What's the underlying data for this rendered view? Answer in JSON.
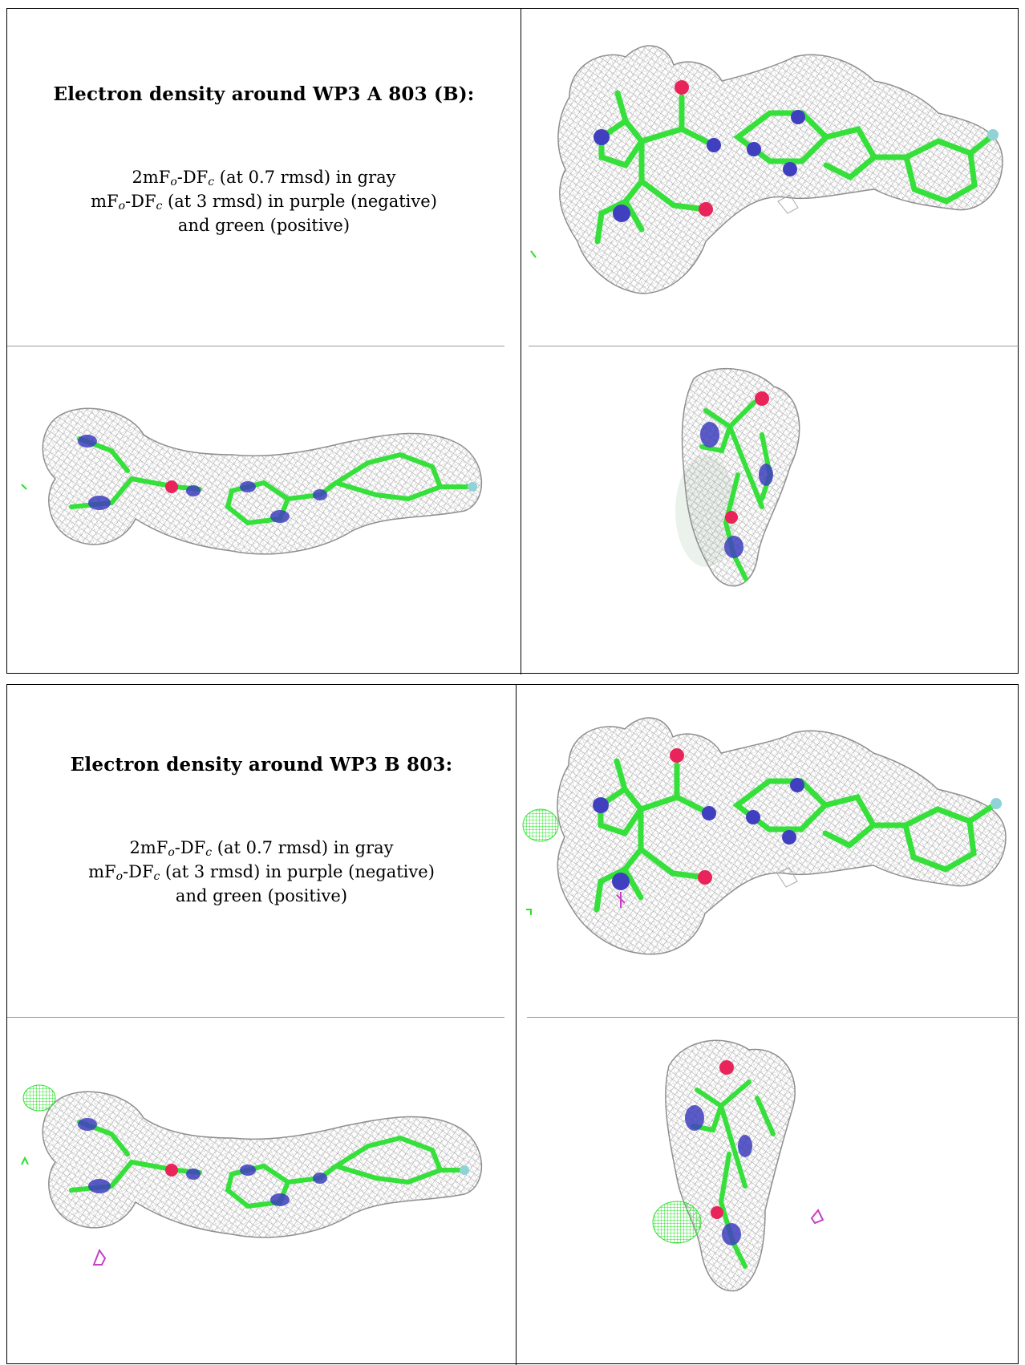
{
  "panels": [
    {
      "title": "Electron density around WP3 A 803 (B):",
      "line1": [
        "2mF",
        "o",
        "-DF",
        "c",
        " (at 0.7 rmsd) in gray"
      ],
      "line2": [
        "mF",
        "o",
        "-DF",
        "c",
        " (at 3 rmsd) in purple (negative)"
      ],
      "line3": "and green (positive)"
    },
    {
      "title": "Electron density around WP3 B 803:",
      "line1": [
        "2mF",
        "o",
        "-DF",
        "c",
        " (at 0.7 rmsd) in gray"
      ],
      "line2": [
        "mF",
        "o",
        "-DF",
        "c",
        " (at 3 rmsd) in purple (negative)"
      ],
      "line3": "and green (positive)"
    }
  ],
  "colors": {
    "mesh_gray": "#a6a6a6",
    "carbon_green": "#35e03a",
    "nitrogen_blue": "#3f3fbf",
    "oxygen_red": "#e8245a",
    "fluorine_cyan": "#8fd3d6",
    "diff_green": "#2ee02e",
    "diff_purple": "#c93fc9"
  }
}
